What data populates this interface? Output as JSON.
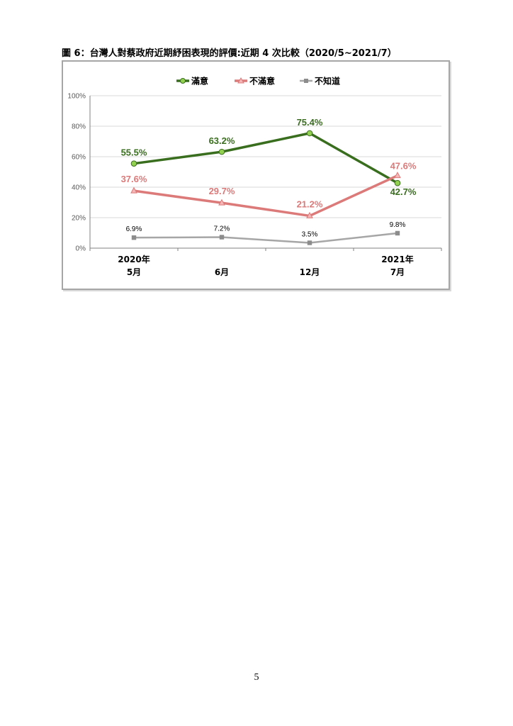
{
  "page": {
    "caption": "圖 6：台灣人對蔡政府近期紓困表現的評價:近期 4 次比較（2020/5~2021/7）",
    "page_number": "5"
  },
  "chart_data": {
    "type": "line",
    "title": "",
    "xlabel": "",
    "ylabel": "",
    "categories": [
      [
        "2020年",
        "5月"
      ],
      [
        "6月"
      ],
      [
        "12月"
      ],
      [
        "2021年",
        "7月"
      ]
    ],
    "ylim": [
      0,
      100
    ],
    "yticks": [
      "0%",
      "20%",
      "40%",
      "60%",
      "80%",
      "100%"
    ],
    "grid": true,
    "legend_position": "top",
    "series": [
      {
        "name": "滿意",
        "values": [
          55.5,
          63.2,
          75.4,
          42.7
        ],
        "labels": [
          "55.5%",
          "63.2%",
          "75.4%",
          "42.7%"
        ],
        "color": "#3a6e1f",
        "marker_color": "#92d050",
        "marker": "circle"
      },
      {
        "name": "不滿意",
        "values": [
          37.6,
          29.7,
          21.2,
          47.6
        ],
        "labels": [
          "37.6%",
          "29.7%",
          "21.2%",
          "47.6%"
        ],
        "color": "#dc7a7a",
        "marker_color": "#f4b6b6",
        "marker": "triangle"
      },
      {
        "name": "不知道",
        "values": [
          6.9,
          7.2,
          3.5,
          9.8
        ],
        "labels": [
          "6.9%",
          "7.2%",
          "3.5%",
          "9.8%"
        ],
        "color": "#a6a6a6",
        "marker_color": "#8c8c8c",
        "marker": "square"
      }
    ]
  }
}
